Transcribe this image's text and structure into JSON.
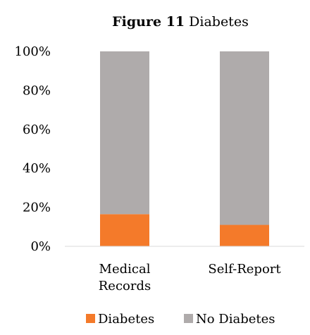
{
  "chart_data": {
    "type": "bar",
    "stacked": true,
    "percent_stacked": true,
    "title": {
      "bold_part": "Figure 11",
      "rest": "Diabetes"
    },
    "categories": [
      [
        "Medical",
        "Records"
      ],
      [
        "Self-Report"
      ]
    ],
    "series": [
      {
        "name": "Diabetes",
        "values": [
          16.5,
          11
        ],
        "color": "#F47A2A"
      },
      {
        "name": "No Diabetes",
        "values": [
          83.5,
          89
        ],
        "color": "#AFABAB"
      }
    ],
    "y_ticks": [
      "0%",
      "20%",
      "40%",
      "60%",
      "80%",
      "100%"
    ],
    "ylim": [
      0,
      100
    ],
    "grid": false,
    "legend_position": "bottom",
    "axis_color": "#D9D9D9"
  }
}
